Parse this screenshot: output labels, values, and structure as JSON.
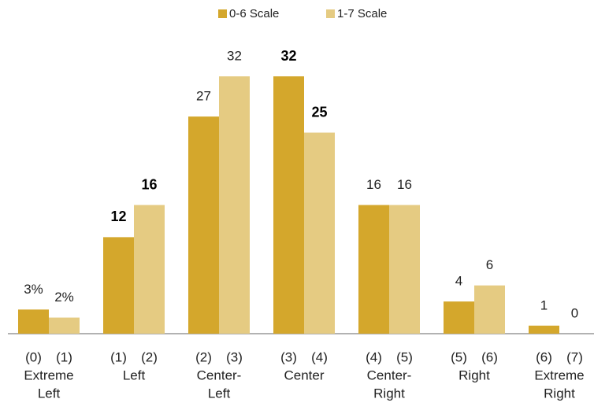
{
  "chart_data": {
    "type": "bar",
    "categories": [
      [
        "Extreme",
        "Left"
      ],
      [
        "Left"
      ],
      [
        "Center-",
        "Left"
      ],
      [
        "Center"
      ],
      [
        "Center-",
        "Right"
      ],
      [
        "Right"
      ],
      [
        "Extreme",
        "Right"
      ]
    ],
    "series": [
      {
        "name": "0-6 Scale",
        "color": "#d4a72c",
        "codes": [
          "(0)",
          "(1)",
          "(2)",
          "(3)",
          "(4)",
          "(5)",
          "(6)"
        ],
        "values": [
          3,
          12,
          27,
          32,
          16,
          4,
          1
        ],
        "value_labels": [
          "3%",
          "12",
          "27",
          "32",
          "16",
          "4",
          "1"
        ],
        "value_label_bold": [
          false,
          true,
          false,
          true,
          false,
          false,
          false
        ]
      },
      {
        "name": "1-7 Scale",
        "color": "#e5cb82",
        "codes": [
          "(1)",
          "(2)",
          "(3)",
          "(4)",
          "(5)",
          "(6)",
          "(7)"
        ],
        "values": [
          2,
          16,
          32,
          25,
          16,
          6,
          0
        ],
        "value_labels": [
          "2%",
          "16",
          "32",
          "25",
          "16",
          "6",
          "0"
        ],
        "value_label_bold": [
          false,
          true,
          false,
          true,
          false,
          false,
          false
        ]
      }
    ],
    "ylim": [
      0,
      32
    ],
    "legend": "top"
  }
}
